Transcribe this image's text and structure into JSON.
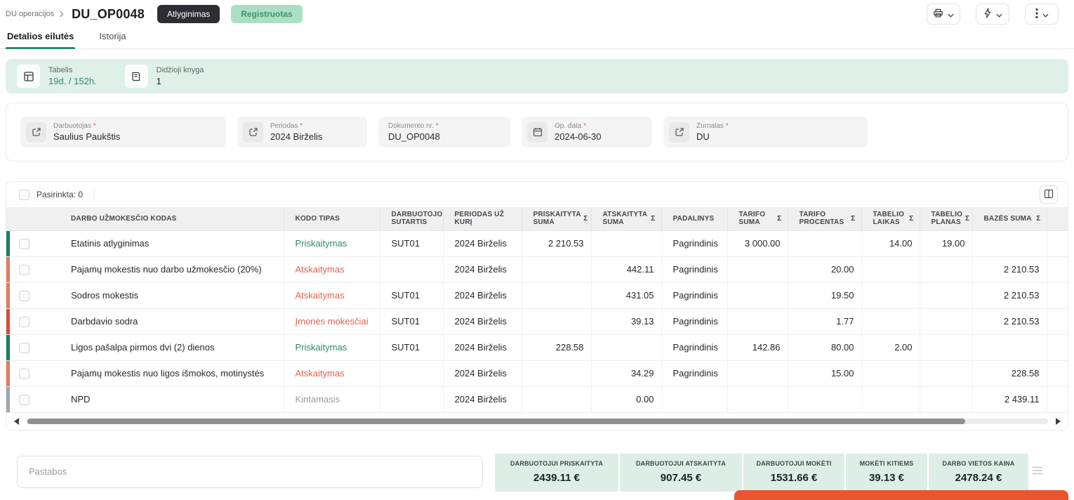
{
  "header": {
    "breadcrumb_parent": "DU operacijos",
    "title": "DU_OP0048",
    "type_badge": "Atlyginimas",
    "status_badge": "Registruotas"
  },
  "tabs": {
    "details": "Detalios eilutės",
    "history": "Istorija"
  },
  "info_banner": {
    "items": [
      {
        "icon": "timesheet-icon",
        "label": "Tabelis",
        "value": "19d. / 152h."
      },
      {
        "icon": "ledger-icon",
        "label": "Didžioji knyga",
        "value": "1"
      }
    ]
  },
  "form": {
    "required_marker": "*",
    "fields": [
      {
        "label": "Darbuotojas",
        "value": "Saulius Paukštis",
        "icon": "external-link-icon"
      },
      {
        "label": "Periodas",
        "value": "2024 Birželis",
        "icon": "external-link-icon"
      },
      {
        "label": "Dokumento nr.",
        "value": "DU_OP0048",
        "icon": null
      },
      {
        "label": "Op. data",
        "value": "2024-06-30",
        "icon": "calendar-icon"
      },
      {
        "label": "Žurnalas",
        "value": "DU",
        "icon": "external-link-icon"
      }
    ]
  },
  "table": {
    "selected_label": "Pasirinkta: 0",
    "sigma_symbol": "Σ",
    "columns": [
      {
        "label": "DARBO UŽMOKESČIO KODAS",
        "key": "code",
        "sigma": false,
        "align": "left"
      },
      {
        "label": "KODO TIPAS",
        "key": "type",
        "sigma": false,
        "align": "left"
      },
      {
        "label": "DARBUOTOJO SUTARTIS",
        "key": "contract",
        "sigma": false,
        "align": "left"
      },
      {
        "label": "PERIODAS UŽ KURĮ",
        "key": "period",
        "sigma": false,
        "align": "left"
      },
      {
        "label": "PRISKAITYTA SUMA",
        "key": "accrued",
        "sigma": true,
        "align": "right"
      },
      {
        "label": "ATSKAITYTA SUMA",
        "key": "deducted",
        "sigma": true,
        "align": "right"
      },
      {
        "label": "PADALINYS",
        "key": "department",
        "sigma": false,
        "align": "left"
      },
      {
        "label": "TARIFO SUMA",
        "key": "tariff_sum",
        "sigma": true,
        "align": "right"
      },
      {
        "label": "TARIFO PROCENTAS",
        "key": "tariff_percent",
        "sigma": true,
        "align": "right"
      },
      {
        "label": "TABELIO LAIKAS",
        "key": "timesheet_time",
        "sigma": true,
        "align": "right"
      },
      {
        "label": "TABELIO PLANAS",
        "key": "timesheet_plan",
        "sigma": true,
        "align": "right"
      },
      {
        "label": "BAZĖS SUMA",
        "key": "base_sum",
        "sigma": true,
        "align": "right"
      }
    ],
    "rows": [
      {
        "strip_color": "#17805f",
        "type_style": "green",
        "cells": {
          "code": "Etatinis atlyginimas",
          "type": "Priskaitymas",
          "contract": "SUT01",
          "period": "2024 Birželis",
          "accrued": "2 210.53",
          "deducted": "",
          "department": "Pagrindinis",
          "tariff_sum": "3 000.00",
          "tariff_percent": "",
          "timesheet_time": "14.00",
          "timesheet_plan": "19.00",
          "base_sum": ""
        }
      },
      {
        "strip_color": "#e4795b",
        "type_style": "red",
        "cells": {
          "code": "Pajamų mokestis nuo darbo užmokesčio (20%)",
          "type": "Atskaitymas",
          "contract": "",
          "period": "2024 Birželis",
          "accrued": "",
          "deducted": "442.11",
          "department": "Pagrindinis",
          "tariff_sum": "",
          "tariff_percent": "20.00",
          "timesheet_time": "",
          "timesheet_plan": "",
          "base_sum": "2 210.53"
        }
      },
      {
        "strip_color": "#e4795b",
        "type_style": "red",
        "cells": {
          "code": "Sodros mokestis",
          "type": "Atskaitymas",
          "contract": "SUT01",
          "period": "2024 Birželis",
          "accrued": "",
          "deducted": "431.05",
          "department": "Pagrindinis",
          "tariff_sum": "",
          "tariff_percent": "19.50",
          "timesheet_time": "",
          "timesheet_plan": "",
          "base_sum": "2 210.53"
        }
      },
      {
        "strip_color": "#de4a38",
        "type_style": "red",
        "cells": {
          "code": "Darbdavio sodra",
          "type": "Įmonės mokesčiai",
          "contract": "SUT01",
          "period": "2024 Birželis",
          "accrued": "",
          "deducted": "39.13",
          "department": "Pagrindinis",
          "tariff_sum": "",
          "tariff_percent": "1.77",
          "timesheet_time": "",
          "timesheet_plan": "",
          "base_sum": "2 210.53"
        }
      },
      {
        "strip_color": "#17805f",
        "type_style": "green",
        "cells": {
          "code": "Ligos pašalpa pirmos dvi (2) dienos",
          "type": "Priskaitymas",
          "contract": "SUT01",
          "period": "2024 Birželis",
          "accrued": "228.58",
          "deducted": "",
          "department": "Pagrindinis",
          "tariff_sum": "142.86",
          "tariff_percent": "80.00",
          "timesheet_time": "2.00",
          "timesheet_plan": "",
          "base_sum": ""
        }
      },
      {
        "strip_color": "#e4795b",
        "type_style": "red",
        "cells": {
          "code": "Pajamų mokestis nuo ligos išmokos, motinystės",
          "type": "Atskaitymas",
          "contract": "",
          "period": "2024 Birželis",
          "accrued": "",
          "deducted": "34.29",
          "department": "Pagrindinis",
          "tariff_sum": "",
          "tariff_percent": "15.00",
          "timesheet_time": "",
          "timesheet_plan": "",
          "base_sum": "228.58"
        }
      },
      {
        "strip_color": "#a3a3aa",
        "type_style": "gray",
        "cells": {
          "code": "NPD",
          "type": "Kintamasis",
          "contract": "",
          "period": "2024 Birželis",
          "accrued": "",
          "deducted": "0.00",
          "department": "",
          "tariff_sum": "",
          "tariff_percent": "",
          "timesheet_time": "",
          "timesheet_plan": "",
          "base_sum": "2 439.11"
        }
      }
    ]
  },
  "notes_placeholder": "Pastabos",
  "summary_cards": [
    {
      "label": "DARBUOTOJUI PRISKAITYTA",
      "value": "2439.11 €"
    },
    {
      "label": "DARBUOTOJUI ATSKAITYTA",
      "value": "907.45 €"
    },
    {
      "label": "DARBUOTOJUI MOKĖTI",
      "value": "1531.66 €"
    },
    {
      "label": "MOKĖTI KITIEMS",
      "value": "39.13 €"
    },
    {
      "label": "DARBO VIETOS KAINA",
      "value": "2478.24 €"
    }
  ],
  "icons": {
    "toolbar": [
      "printer-icon",
      "flash-icon",
      "kebab-menu-icon",
      "chevron-down-icon"
    ],
    "banner": [
      "timesheet-icon",
      "ledger-icon"
    ],
    "fields": [
      "external-link-icon",
      "calendar-icon"
    ],
    "table": [
      "columns-settings-icon",
      "sum-sigma-icon"
    ],
    "scrollbar": [
      "scroll-left-icon",
      "scroll-right-icon"
    ],
    "bottom": [
      "summary-menu-icon"
    ]
  },
  "colors": {
    "accent_teal": "#2c8c6a",
    "positive_green": "#2a8c62",
    "negative_red": "#e2614e",
    "neutral_gray": "#9b9ba2",
    "banner_mint": "#dff0e9",
    "summary_mint": "#ddeee7",
    "orange_action": "#e8552e"
  }
}
